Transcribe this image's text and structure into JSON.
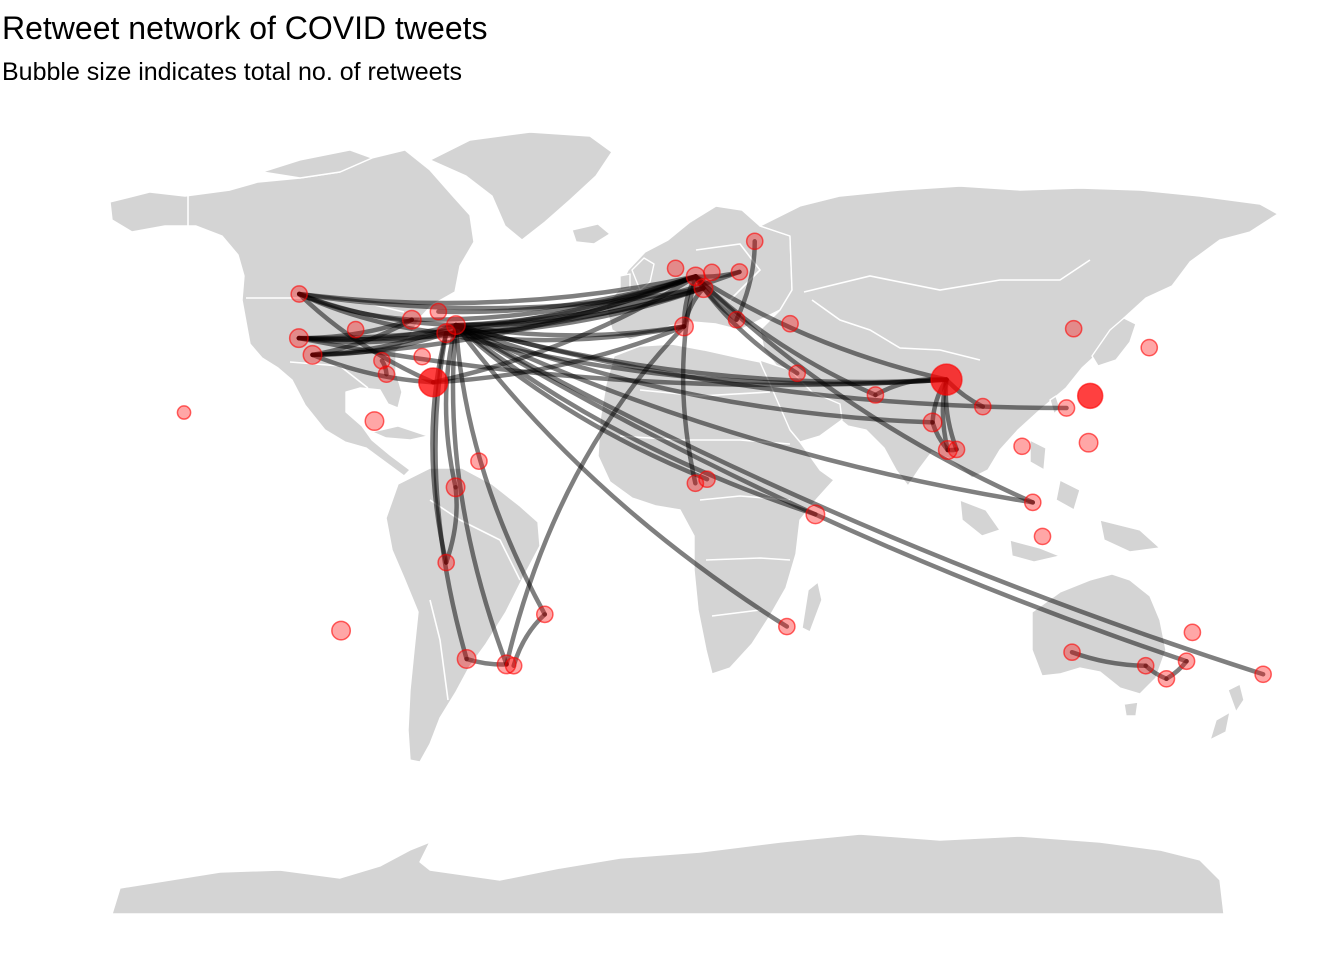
{
  "title": "Retweet network of COVID tweets",
  "subtitle": "Bubble size indicates total no. of retweets",
  "colors": {
    "land": "#d4d4d4",
    "borders": "#ffffff",
    "bubbles": "#ff0000",
    "edges": "#000000"
  },
  "map": {
    "projection": "equirectangular",
    "lon_range": [
      -180,
      180
    ],
    "lat_range": [
      -90,
      84
    ]
  },
  "chart_data": {
    "type": "scatter",
    "encoding": "bubble size = total no. of retweets; lines = retweet connections",
    "nodes": [
      {
        "id": "seattle",
        "lon": -122.3,
        "lat": 47.6,
        "size": 2
      },
      {
        "id": "sanfrancisco",
        "lon": -122.4,
        "lat": 37.8,
        "size": 3
      },
      {
        "id": "losangeles",
        "lon": -118.2,
        "lat": 34.1,
        "size": 3
      },
      {
        "id": "denver",
        "lon": -104.9,
        "lat": 39.7,
        "size": 2
      },
      {
        "id": "chicago",
        "lon": -87.6,
        "lat": 41.9,
        "size": 3
      },
      {
        "id": "newyork",
        "lon": -74.0,
        "lat": 40.7,
        "size": 3
      },
      {
        "id": "washington",
        "lon": -77.0,
        "lat": 38.9,
        "size": 3
      },
      {
        "id": "toronto",
        "lon": -79.4,
        "lat": 43.7,
        "size": 2
      },
      {
        "id": "atlanta",
        "lon": -84.4,
        "lat": 33.7,
        "size": 2
      },
      {
        "id": "florida",
        "lon": -81.0,
        "lat": 28.0,
        "size": 10
      },
      {
        "id": "houston",
        "lon": -95.4,
        "lat": 29.8,
        "size": 2
      },
      {
        "id": "dallas",
        "lon": -96.8,
        "lat": 32.8,
        "size": 2
      },
      {
        "id": "mexicocity",
        "lon": -99.1,
        "lat": 19.4,
        "size": 3
      },
      {
        "id": "bogota",
        "lon": -74.1,
        "lat": 4.7,
        "size": 3
      },
      {
        "id": "caracas",
        "lon": -66.9,
        "lat": 10.5,
        "size": 2
      },
      {
        "id": "lima",
        "lon": -77.0,
        "lat": -12.0,
        "size": 2
      },
      {
        "id": "santiago",
        "lon": -70.7,
        "lat": -33.4,
        "size": 3
      },
      {
        "id": "buenosaires",
        "lon": -58.4,
        "lat": -34.6,
        "size": 3
      },
      {
        "id": "saopaulo",
        "lon": -46.6,
        "lat": -23.5,
        "size": 2
      },
      {
        "id": "montevideo",
        "lon": -56.2,
        "lat": -34.9,
        "size": 2
      },
      {
        "id": "london",
        "lon": -0.1,
        "lat": 51.5,
        "size": 3
      },
      {
        "id": "paris",
        "lon": 2.3,
        "lat": 48.9,
        "size": 3
      },
      {
        "id": "madrid",
        "lon": -3.7,
        "lat": 40.4,
        "size": 3
      },
      {
        "id": "berlin",
        "lon": 13.4,
        "lat": 52.5,
        "size": 2
      },
      {
        "id": "rome",
        "lon": 12.5,
        "lat": 41.9,
        "size": 2
      },
      {
        "id": "amsterdam",
        "lon": 4.9,
        "lat": 52.4,
        "size": 2
      },
      {
        "id": "dublin",
        "lon": -6.3,
        "lat": 53.3,
        "size": 2
      },
      {
        "id": "stockholm",
        "lon": 18.1,
        "lat": 59.3,
        "size": 2
      },
      {
        "id": "istanbul",
        "lon": 29.0,
        "lat": 41.0,
        "size": 2
      },
      {
        "id": "cairo",
        "lon": 31.2,
        "lat": 30.0,
        "size": 2
      },
      {
        "id": "lagos",
        "lon": 3.4,
        "lat": 6.5,
        "size": 2
      },
      {
        "id": "accra",
        "lon": -0.2,
        "lat": 5.6,
        "size": 2
      },
      {
        "id": "nairobi",
        "lon": 36.8,
        "lat": -1.3,
        "size": 3
      },
      {
        "id": "johannesburg",
        "lon": 28.0,
        "lat": -26.2,
        "size": 2
      },
      {
        "id": "dubai",
        "lon": 55.3,
        "lat": 25.2,
        "size": 2
      },
      {
        "id": "delhi",
        "lon": 77.2,
        "lat": 28.6,
        "size": 12
      },
      {
        "id": "mumbai",
        "lon": 72.9,
        "lat": 19.1,
        "size": 3
      },
      {
        "id": "bangalore",
        "lon": 77.6,
        "lat": 12.97,
        "size": 3
      },
      {
        "id": "chennai",
        "lon": 80.3,
        "lat": 13.1,
        "size": 2
      },
      {
        "id": "kolkata",
        "lon": 88.4,
        "lat": 22.6,
        "size": 2
      },
      {
        "id": "bangkok",
        "lon": 100.5,
        "lat": 13.8,
        "size": 2
      },
      {
        "id": "singapore",
        "lon": 103.8,
        "lat": 1.35,
        "size": 2
      },
      {
        "id": "hongkong",
        "lon": 114.2,
        "lat": 22.3,
        "size": 2
      },
      {
        "id": "manila",
        "lon": 121.0,
        "lat": 14.6,
        "size": 3
      },
      {
        "id": "taipei",
        "lon": 121.5,
        "lat": 25.0,
        "size": 7
      },
      {
        "id": "tokyo",
        "lon": 139.7,
        "lat": 35.7,
        "size": 2
      },
      {
        "id": "beijing",
        "lon": 116.4,
        "lat": 39.9,
        "size": 2
      },
      {
        "id": "sydney",
        "lon": 151.2,
        "lat": -33.9,
        "size": 2
      },
      {
        "id": "melbourne",
        "lon": 145.0,
        "lat": -37.8,
        "size": 2
      },
      {
        "id": "brisbane",
        "lon": 153.0,
        "lat": -27.5,
        "size": 2
      },
      {
        "id": "adelaide",
        "lon": 138.6,
        "lat": -34.9,
        "size": 2
      },
      {
        "id": "perth",
        "lon": 115.9,
        "lat": -31.9,
        "size": 2
      },
      {
        "id": "auckland",
        "lon": 174.8,
        "lat": -36.8,
        "size": 2
      },
      {
        "id": "jakarta",
        "lon": 106.8,
        "lat": -6.2,
        "size": 2
      },
      {
        "id": "pacific",
        "lon": -109.4,
        "lat": -27.1,
        "size": 3
      },
      {
        "id": "hawaii",
        "lon": -157.8,
        "lat": 21.3,
        "size": 1
      }
    ],
    "edges": [
      [
        "seattle",
        "newyork"
      ],
      [
        "seattle",
        "london"
      ],
      [
        "seattle",
        "paris"
      ],
      [
        "seattle",
        "washington"
      ],
      [
        "seattle",
        "florida"
      ],
      [
        "seattle",
        "chicago"
      ],
      [
        "sanfrancisco",
        "newyork"
      ],
      [
        "sanfrancisco",
        "london"
      ],
      [
        "sanfrancisco",
        "paris"
      ],
      [
        "sanfrancisco",
        "washington"
      ],
      [
        "sanfrancisco",
        "delhi"
      ],
      [
        "sanfrancisco",
        "chicago"
      ],
      [
        "losangeles",
        "newyork"
      ],
      [
        "losangeles",
        "london"
      ],
      [
        "losangeles",
        "washington"
      ],
      [
        "losangeles",
        "chicago"
      ],
      [
        "losangeles",
        "florida"
      ],
      [
        "newyork",
        "london"
      ],
      [
        "newyork",
        "paris"
      ],
      [
        "newyork",
        "madrid"
      ],
      [
        "newyork",
        "berlin"
      ],
      [
        "newyork",
        "delhi"
      ],
      [
        "newyork",
        "sydney"
      ],
      [
        "newyork",
        "nairobi"
      ],
      [
        "newyork",
        "lagos"
      ],
      [
        "newyork",
        "bogota"
      ],
      [
        "newyork",
        "buenosaires"
      ],
      [
        "newyork",
        "saopaulo"
      ],
      [
        "newyork",
        "mumbai"
      ],
      [
        "newyork",
        "singapore"
      ],
      [
        "newyork",
        "auckland"
      ],
      [
        "newyork",
        "hongkong"
      ],
      [
        "newyork",
        "johannesburg"
      ],
      [
        "washington",
        "london"
      ],
      [
        "washington",
        "paris"
      ],
      [
        "washington",
        "delhi"
      ],
      [
        "washington",
        "lima"
      ],
      [
        "washington",
        "santiago"
      ],
      [
        "washington",
        "madrid"
      ],
      [
        "toronto",
        "london"
      ],
      [
        "chicago",
        "london"
      ],
      [
        "florida",
        "london"
      ],
      [
        "florida",
        "madrid"
      ],
      [
        "london",
        "paris"
      ],
      [
        "london",
        "madrid"
      ],
      [
        "london",
        "berlin"
      ],
      [
        "london",
        "rome"
      ],
      [
        "london",
        "delhi"
      ],
      [
        "london",
        "dubai"
      ],
      [
        "london",
        "accra"
      ],
      [
        "london",
        "singapore"
      ],
      [
        "paris",
        "madrid"
      ],
      [
        "paris",
        "cairo"
      ],
      [
        "madrid",
        "buenosaires"
      ],
      [
        "rome",
        "stockholm"
      ],
      [
        "delhi",
        "mumbai"
      ],
      [
        "delhi",
        "bangalore"
      ],
      [
        "delhi",
        "chennai"
      ],
      [
        "delhi",
        "kolkata"
      ],
      [
        "delhi",
        "dubai"
      ],
      [
        "mumbai",
        "bangalore"
      ],
      [
        "bangalore",
        "chennai"
      ],
      [
        "perth",
        "adelaide"
      ],
      [
        "adelaide",
        "melbourne"
      ],
      [
        "melbourne",
        "sydney"
      ],
      [
        "santiago",
        "buenosaires"
      ],
      [
        "saopaulo",
        "montevideo"
      ],
      [
        "lima",
        "bogota"
      ],
      [
        "houston",
        "dallas"
      ]
    ]
  }
}
